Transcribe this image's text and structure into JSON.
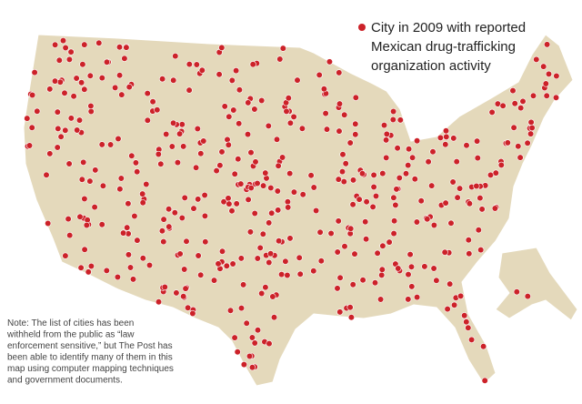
{
  "legend": {
    "lines": [
      "City in 2009 with reported",
      "Mexican drug-trafficking",
      "organization activity"
    ]
  },
  "note": {
    "lines": [
      "Note: The list of cities has been",
      "withheld from the public as “law",
      "enforcement sensitive,” but The Post has",
      "been able to identify many of them in this",
      "map using computer mapping techniques",
      "and government documents."
    ]
  }
}
